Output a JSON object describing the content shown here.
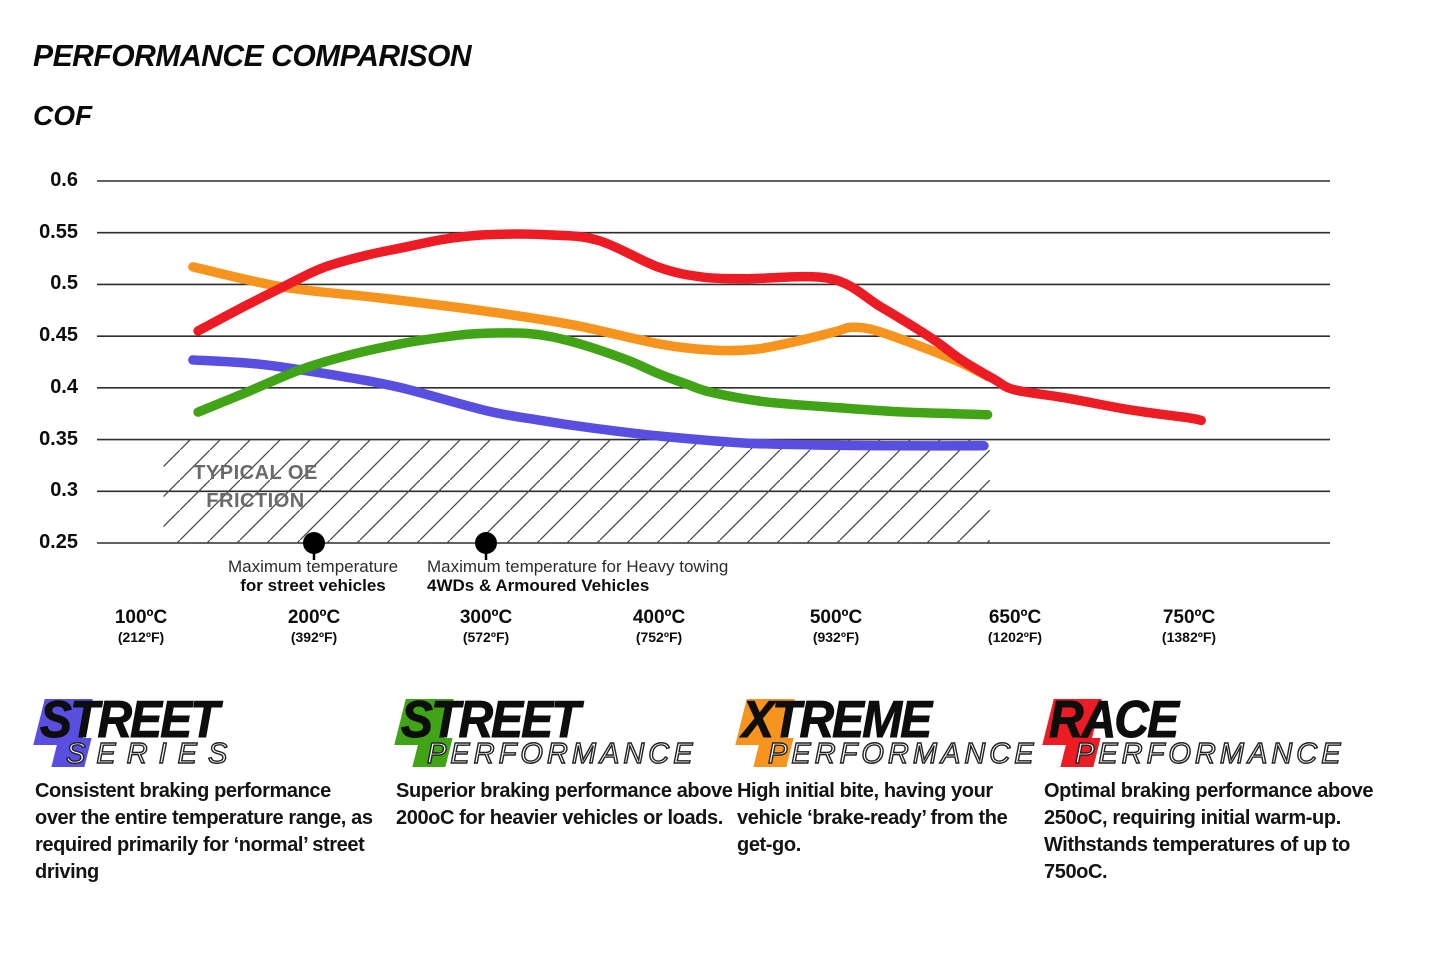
{
  "title": "PERFORMANCE COMPARISON",
  "chart_data": {
    "type": "line",
    "title": "PERFORMANCE COMPARISON",
    "ylabel": "COF",
    "ylim": [
      0.25,
      0.6
    ],
    "grid": "horizontal-only",
    "y_ticks": [
      "0.6",
      "0.55",
      "0.5",
      "0.45",
      "0.4",
      "0.35",
      "0.3",
      "0.25"
    ],
    "y_tick_values": [
      0.6,
      0.55,
      0.5,
      0.45,
      0.4,
      0.35,
      0.3,
      0.25
    ],
    "x_ticks": [
      {
        "temp": 100,
        "label": "100ºC",
        "sub": "(212ºF)"
      },
      {
        "temp": 200,
        "label": "200ºC",
        "sub": "(392ºF)"
      },
      {
        "temp": 300,
        "label": "300ºC",
        "sub": "(572ºF)"
      },
      {
        "temp": 400,
        "label": "400ºC",
        "sub": "(752ºF)"
      },
      {
        "temp": 500,
        "label": "500ºC",
        "sub": "(932ºF)"
      },
      {
        "temp": 650,
        "label": "650ºC",
        "sub": "(1202ºF)"
      },
      {
        "temp": 750,
        "label": "750ºC",
        "sub": "(1382ºF)"
      }
    ],
    "series": [
      {
        "name": "Street Series",
        "color": "#584fe0",
        "points": [
          [
            130,
            0.427
          ],
          [
            165,
            0.4235
          ],
          [
            192,
            0.4175
          ],
          [
            220,
            0.41
          ],
          [
            251,
            0.4
          ],
          [
            300,
            0.378
          ],
          [
            330,
            0.369
          ],
          [
            360,
            0.3615
          ],
          [
            400,
            0.3535
          ],
          [
            450,
            0.3465
          ],
          [
            500,
            0.3445
          ],
          [
            550,
            0.344
          ],
          [
            624,
            0.344
          ]
        ]
      },
      {
        "name": "Street Performance",
        "color": "#41a417",
        "points": [
          [
            133,
            0.3765
          ],
          [
            160,
            0.395
          ],
          [
            192,
            0.4175
          ],
          [
            220,
            0.4315
          ],
          [
            250,
            0.4425
          ],
          [
            275,
            0.449
          ],
          [
            295,
            0.4525
          ],
          [
            325,
            0.4525
          ],
          [
            350,
            0.4445
          ],
          [
            380,
            0.428
          ],
          [
            400,
            0.4135
          ],
          [
            415,
            0.404
          ],
          [
            430,
            0.3955
          ],
          [
            460,
            0.3865
          ],
          [
            500,
            0.381
          ],
          [
            550,
            0.377
          ],
          [
            600,
            0.375
          ],
          [
            627,
            0.374
          ]
        ]
      },
      {
        "name": "Xtreme Performance",
        "color": "#f7941d",
        "points": [
          [
            130,
            0.517
          ],
          [
            182,
            0.4975
          ],
          [
            238,
            0.487
          ],
          [
            300,
            0.474
          ],
          [
            350,
            0.461
          ],
          [
            400,
            0.4425
          ],
          [
            430,
            0.4365
          ],
          [
            455,
            0.4375
          ],
          [
            480,
            0.446
          ],
          [
            500,
            0.4545
          ],
          [
            512,
            0.4585
          ],
          [
            528,
            0.457
          ],
          [
            550,
            0.449
          ],
          [
            580,
            0.436
          ],
          [
            605,
            0.424
          ],
          [
            627,
            0.411
          ]
        ]
      },
      {
        "name": "Race Performance",
        "color": "#ed1c24",
        "points": [
          [
            133,
            0.455
          ],
          [
            160,
            0.479
          ],
          [
            182,
            0.4975
          ],
          [
            205,
            0.516
          ],
          [
            230,
            0.528
          ],
          [
            250,
            0.535
          ],
          [
            275,
            0.5435
          ],
          [
            300,
            0.548
          ],
          [
            335,
            0.548
          ],
          [
            365,
            0.5425
          ],
          [
            400,
            0.5165
          ],
          [
            425,
            0.507
          ],
          [
            450,
            0.5055
          ],
          [
            497,
            0.5055
          ],
          [
            538,
            0.478
          ],
          [
            580,
            0.448
          ],
          [
            605,
            0.427
          ],
          [
            633,
            0.408
          ],
          [
            650,
            0.398
          ],
          [
            680,
            0.39
          ],
          [
            717,
            0.3785
          ],
          [
            750,
            0.371
          ],
          [
            757,
            0.3685
          ]
        ]
      }
    ],
    "oe_band": {
      "label_line1": "TYPICAL OE",
      "label_line2": "FRICTION",
      "cof_range": [
        0.25,
        0.35
      ],
      "temp_range": [
        113,
        629
      ]
    },
    "annotations": [
      {
        "temp": 200,
        "cof": 0.25,
        "line1": "Maximum temperature",
        "line2": "for street vehicles"
      },
      {
        "temp": 300,
        "cof": 0.25,
        "line1": "Maximum temperature for Heavy towing",
        "line2": "4WDs & Armoured Vehicles"
      }
    ]
  },
  "legend": [
    {
      "word1": "STREET",
      "word2": "SERIES",
      "color": "#584fe0",
      "description": "Consistent braking performance over the entire temperature range, as required primarily for ‘normal’ street driving"
    },
    {
      "word1": "STREET",
      "word2": "PERFORMANCE",
      "color": "#41a417",
      "description": "Superior braking performance above 200oC for heavier vehicles or loads."
    },
    {
      "word1": "XTREME",
      "word2": "PERFORMANCE",
      "color": "#f7941d",
      "description": "High initial bite, having your vehicle ‘brake-ready’ from the get-go."
    },
    {
      "word1": "RACE",
      "word2": "PERFORMANCE",
      "color": "#ed1c24",
      "description": "Optimal braking performance above 250oC, requiring initial warm-up. Withstands temperatures of up to 750oC."
    }
  ]
}
